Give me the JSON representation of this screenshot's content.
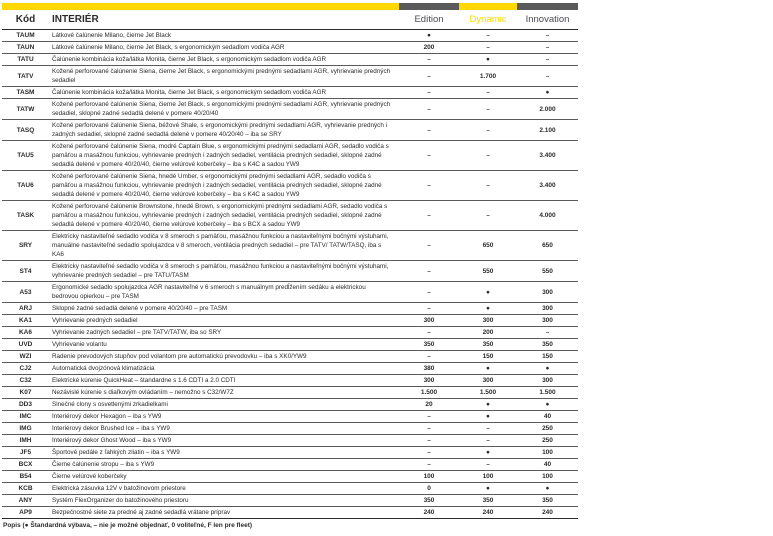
{
  "header": {
    "code": "Kód",
    "title": "INTERIÉR",
    "editions": [
      "Edition",
      "Dynamic",
      "Innovation"
    ]
  },
  "colors": {
    "yellow": "#ffd800",
    "gray": "#5a5a5a"
  },
  "rows": [
    {
      "code": "TAUM",
      "desc": "Látkové čalúnenie Milano, čierne Jet Black",
      "v": [
        "●",
        "–",
        "–"
      ]
    },
    {
      "code": "TAUN",
      "desc": "Látkové čalúnenie Milano, čierne Jet Black, s ergonomickým sedadlom vodiča AGR",
      "v": [
        "200",
        "–",
        "–"
      ]
    },
    {
      "code": "TATU",
      "desc": "Čalúnenie kombinácia koža/látka Monita, čierne Jet Black, s ergonomickým sedadlom vodiča AGR",
      "v": [
        "–",
        "●",
        "–"
      ]
    },
    {
      "code": "TATV",
      "desc": "Kožené perforované čalúnenie Siena, čierne Jet Black, s ergonomickými prednými sedadlami AGR, vyhrievanie predných sedadiel",
      "v": [
        "–",
        "1.700",
        "–"
      ]
    },
    {
      "code": "TASM",
      "desc": "Čalúnenie kombinácia koža/látka Monita, čierne Jet Black, s ergonomickým sedadlom vodiča AGR",
      "v": [
        "–",
        "–",
        "●"
      ]
    },
    {
      "code": "TATW",
      "desc": "Kožené perforované čalúnenie Siena, čierne Jet Black, s ergonomickými prednými sedadlami AGR, vyhrievanie predných sedadiel, sklopné zadné sedadlá delené v pomere 40/20/40",
      "v": [
        "–",
        "–",
        "2.000"
      ]
    },
    {
      "code": "TASQ",
      "desc": "Kožené perforované čalúnenie Siena, béžové Shale, s ergonomickými prednými sedadlami AGR, vyhrievanie predných i zadných sedadiel, sklopné zadné sedadlá delené v pomere 40/20/40 – iba se SRY",
      "v": [
        "–",
        "–",
        "2.100"
      ]
    },
    {
      "code": "TAU5",
      "desc": "Kožené perforované čalúnenie Siena, modré Captain Blue, s ergonomickými prednými sedadlami AGR, sedadlo vodiča s pamäťou a masážnou funkciou, vyhrievanie predných i zadných sedadiel, ventilácia predných sedadiel, sklopné zadné sedadlá delené v pomere 40/20/40, čierne velúrové koberčeky – iba s K4C a sadou YW9",
      "v": [
        "–",
        "–",
        "3.400"
      ]
    },
    {
      "code": "TAU6",
      "desc": "Kožené perforované čalúnenie Siena, hnedé Umber, s ergonomickými prednými sedadlami AGR, sedadlo vodiča s pamäťou a masážnou funkciou, vyhrievanie predných i zadných sedadiel, ventilácia predných sedadiel, sklopné zadné sedadlá delené v pomere 40/20/40, čierne velúrové koberčeky – iba s K4C a sadou YW9",
      "v": [
        "–",
        "–",
        "3.400"
      ]
    },
    {
      "code": "TASK",
      "desc": "Kožené perforované čalúnenie Brownstone, hnedé Brown, s ergonomickými prednými sedadlami AGR, sedadlo vodiča s pamäťou a masážnou funkciou, vyhrievanie predných i zadných sedadiel, ventilácia predných sedadiel, sklopné zadné sedadlá delené v pomere 40/20/40, čierne velúrové koberčeky – iba s BCX a sadou YW9",
      "v": [
        "–",
        "–",
        "4.000"
      ]
    },
    {
      "code": "SRY",
      "desc": "Elektricky nastaviteľné sedadlo vodiča v 8 smeroch s pamäťou, masážnou funkciou a nastaviteľnými bočnými výstuhami, manuálne nastaviteľné sedadlo spolujazdca v 8 smeroch, ventilácia predných sedadiel – pre TATV/ TATW/TASQ, iba s KA6",
      "v": [
        "–",
        "650",
        "650"
      ]
    },
    {
      "code": "ST4",
      "desc": "Elektricky nastaviteľné sedadlo vodiča v 8 smeroch s pamäťou, masážnou funkciou a nastaviteľnými bočnými výstuhami, vyhrievanie predných sedadiel – pre TATU/TASM",
      "v": [
        "–",
        "550",
        "550"
      ]
    },
    {
      "code": "A53",
      "desc": "Ergonomické sedadlo spolujazdca AGR nastaviteľné v 6 smeroch s manuálnym predĺžením sedáku a elektrickou bedrovou opierkou – pre TASM",
      "v": [
        "–",
        "●",
        "300"
      ]
    },
    {
      "code": "ARJ",
      "desc": "Sklopné zadné sedadlá delené v pomere 40/20/40 – pre TASM",
      "v": [
        "–",
        "●",
        "300"
      ]
    },
    {
      "code": "KA1",
      "desc": "Vyhrievanie predných sedadiel",
      "v": [
        "300",
        "300",
        "300"
      ]
    },
    {
      "code": "KA6",
      "desc": "Vyhrievanie zadných sedadiel – pre TATV/TATW, iba so SRY",
      "v": [
        "–",
        "200",
        "–"
      ]
    },
    {
      "code": "UVD",
      "desc": "Vyhrievanie volantu",
      "v": [
        "350",
        "350",
        "350"
      ]
    },
    {
      "code": "WZI",
      "desc": "Radenie prevodových stupňov pod volantom pre automatickú prevodovku – iba s XK0/YW9",
      "v": [
        "–",
        "150",
        "150"
      ]
    },
    {
      "code": "CJ2",
      "desc": "Automatická dvojzónová klimatizácia",
      "v": [
        "380",
        "●",
        "●"
      ]
    },
    {
      "code": "C32",
      "desc": "Elektrické kúrenie QuickHeat – štandardne s 1.6 CDTI a 2.0 CDTI",
      "v": [
        "300",
        "300",
        "300"
      ]
    },
    {
      "code": "K07",
      "desc": "Nezávislé kúrenie s diaľkovým ovládaním – nemožno s C32/W7Z",
      "v": [
        "1.500",
        "1.500",
        "1.500"
      ]
    },
    {
      "code": "DD3",
      "desc": "Slnečné clony s osvetlenými zrkadielkami",
      "v": [
        "20",
        "●",
        "●"
      ]
    },
    {
      "code": "IMC",
      "desc": "Interiérový dekor Hexagon – iba s YW9",
      "v": [
        "–",
        "●",
        "40"
      ]
    },
    {
      "code": "IMG",
      "desc": "Interiérový dekor Brushed Ice – iba s YW9",
      "v": [
        "–",
        "–",
        "250"
      ]
    },
    {
      "code": "IMH",
      "desc": "Interiérový dekor Ghost Wood – iba s YW9",
      "v": [
        "–",
        "–",
        "250"
      ]
    },
    {
      "code": "JF5",
      "desc": "Športové pedále z ľahkých zliatin – iba s YW9",
      "v": [
        "–",
        "●",
        "100"
      ]
    },
    {
      "code": "BCX",
      "desc": "Čierne čalúnenie stropu – iba s YW9",
      "v": [
        "–",
        "–",
        "40"
      ]
    },
    {
      "code": "B54",
      "desc": "Čierne velúrové koberčeky",
      "v": [
        "100",
        "100",
        "100"
      ]
    },
    {
      "code": "KCB",
      "desc": "Elektrická zásuvka 12V v batožinovom priestore",
      "v": [
        "0",
        "●",
        "●"
      ]
    },
    {
      "code": "ANY",
      "desc": "Systém FlexOrganizer do batožinového priestoru",
      "v": [
        "350",
        "350",
        "350"
      ]
    },
    {
      "code": "AP9",
      "desc": "Bezpečnostné siete za predné aj zadné sedadlá vrátane príprav",
      "v": [
        "240",
        "240",
        "240"
      ]
    }
  ],
  "legend": "Popis (● Štandardná výbava, – nie je možné objednať, 0 voliteľné, F len pre fleet)"
}
